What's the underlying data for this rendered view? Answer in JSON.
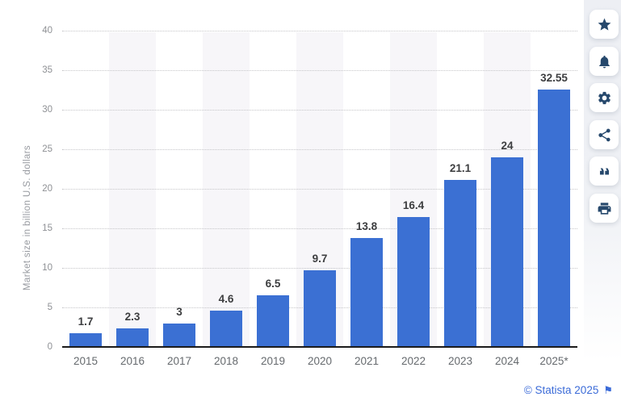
{
  "chart_data": {
    "type": "bar",
    "categories": [
      "2015",
      "2016",
      "2017",
      "2018",
      "2019",
      "2020",
      "2021",
      "2022",
      "2023",
      "2024",
      "2025*"
    ],
    "values": [
      1.7,
      2.3,
      3,
      4.6,
      6.5,
      9.7,
      13.8,
      16.4,
      21.1,
      24,
      32.55
    ],
    "value_labels": [
      "1.7",
      "2.3",
      "3",
      "4.6",
      "6.5",
      "9.7",
      "13.8",
      "16.4",
      "21.1",
      "24",
      "32.55"
    ],
    "title": "",
    "xlabel": "",
    "ylabel": "Market size in billion U.S. dollars",
    "ylim": [
      0,
      40
    ],
    "yticks": [
      0,
      5,
      10,
      15,
      20,
      25,
      30,
      35,
      40
    ],
    "grid": "horizontal-dotted",
    "legend_position": "none",
    "bar_color": "#3b70d3",
    "stripe_color": "#f7f6f9"
  },
  "toolbar": {
    "buttons": [
      {
        "id": "favorite",
        "icon": "star-icon"
      },
      {
        "id": "alerts",
        "icon": "bell-icon"
      },
      {
        "id": "settings",
        "icon": "gear-icon"
      },
      {
        "id": "share",
        "icon": "share-icon"
      },
      {
        "id": "cite",
        "icon": "quote-icon"
      },
      {
        "id": "print",
        "icon": "printer-icon"
      }
    ]
  },
  "footer": {
    "attribution": "© Statista 2025",
    "flag_icon": "flag-icon"
  }
}
